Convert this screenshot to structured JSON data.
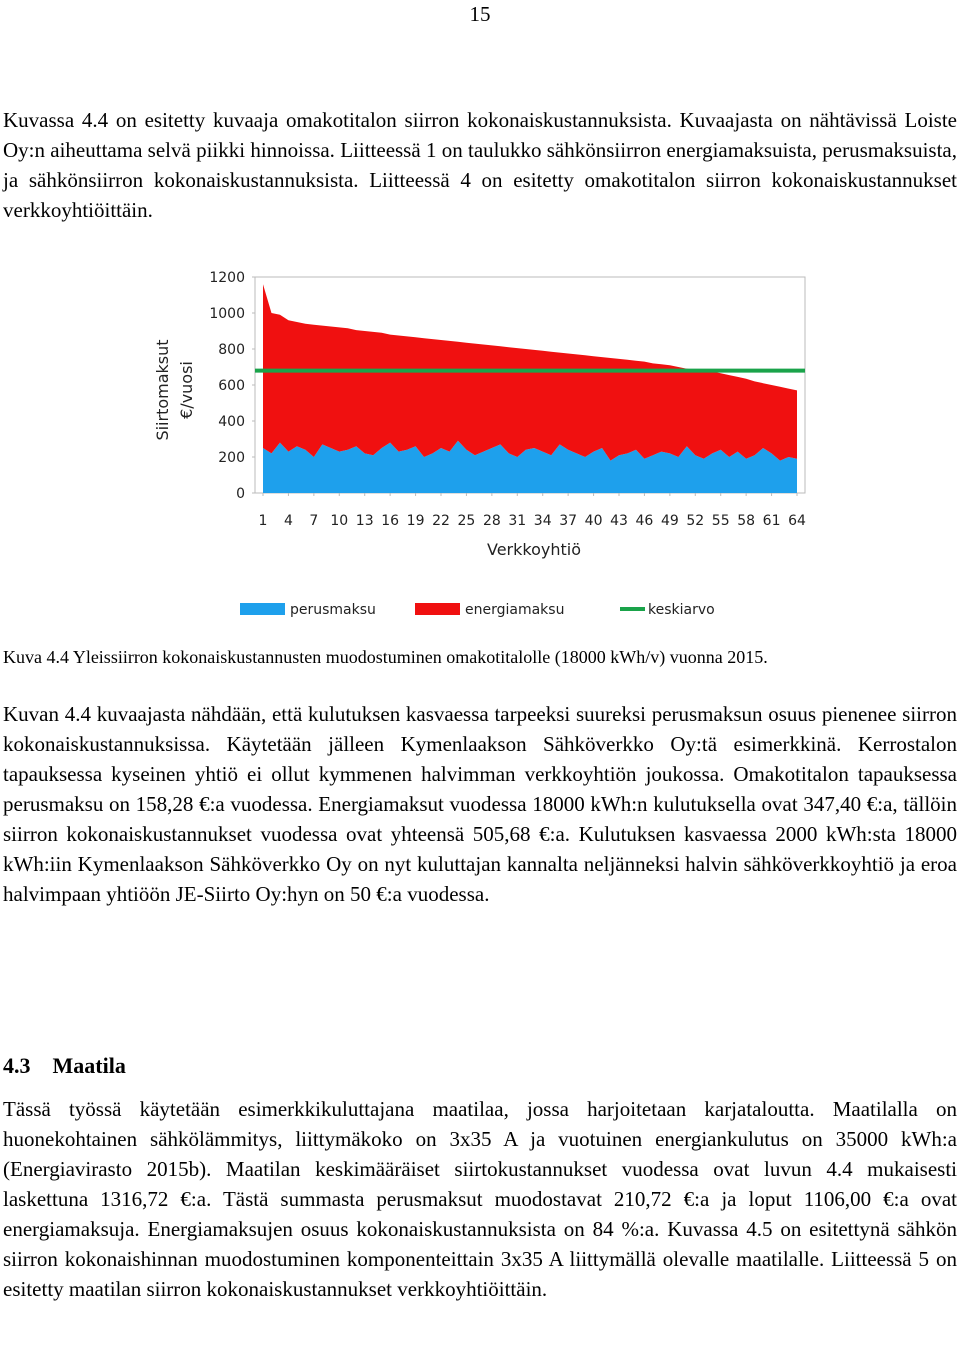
{
  "header": {
    "page_number": "15"
  },
  "paragraphs": [
    "Kuvassa 4.4 on esitetty kuvaaja omakotitalon siirron kokonaiskustannuksista. Kuvaajasta on nähtävissä Loiste Oy:n aiheuttama selvä piikki hinnoissa. Liitteessä 1 on taulukko sähkönsiirron energiamaksuista, perusmaksuista, ja sähkönsiirron kokonaiskustannuksista. Liitteessä 4 on esitetty omakotitalon siirron kokonaiskustannukset verkkoyhtiöittäin.",
    "Kuvan 4.4 kuvaajasta nähdään, että kulutuksen kasvaessa tarpeeksi suureksi perusmaksun osuus pienenee siirron kokonaiskustannuksissa. Käytetään jälleen Kymenlaakson Sähköverkko Oy:tä esimerkkinä. Kerrostalon tapauksessa kyseinen yhtiö ei ollut kymmenen halvimman verkkoyhtiön joukossa. Omakotitalon tapauksessa perusmaksu on 158,28 €:a vuodessa. Energiamaksut vuodessa 18000 kWh:n kulutuksella ovat 347,40 €:a, tällöin siirron kokonaiskustannukset vuodessa ovat yhteensä 505,68 €:a. Kulutuksen kasvaessa 2000 kWh:sta 18000 kWh:iin Kymenlaakson Sähköverkko Oy on nyt kuluttajan kannalta neljänneksi halvin sähköverkkoyhtiö ja eroa halvimpaan yhtiöön JE-Siirto Oy:hyn on 50 €:a vuodessa.",
    "Tässä työssä käytetään esimerkkikuluttajana maatilaa, jossa harjoitetaan karjataloutta. Maatilalla on huonekohtainen sähkölämmitys, liittymäkoko on 3x35 A ja vuotuinen energiankulutus on 35000 kWh:a (Energiavirasto 2015b). Maatilan keskimääräiset siirtokustannukset vuodessa ovat luvun 4.4 mukaisesti laskettuna 1316,72 €:a. Tästä summasta perusmaksut muodostavat 210,72 €:a ja loput 1106,00 €:a ovat energiamaksuja. Energiamaksujen osuus kokonaiskustannuksista on 84 %:a. Kuvassa 4.5 on esitettynä sähkön siirron kokonaishinnan muodostuminen komponenteittain 3x35 A liittymällä olevalle maatilalle. Liitteessä 5 on esitetty maatilan siirron kokonaiskustannukset verkkoyhtiöittäin."
  ],
  "caption": "Kuva 4.4 Yleissiirron kokonaiskustannusten muodostuminen omakotitalolle (18000 kWh/v) vuonna 2015.",
  "section": {
    "number": "4.3",
    "title": "Maatila"
  },
  "chart_data": {
    "type": "stacked_area",
    "x_label": "Verkkoyhtiö",
    "y_label": [
      "Siirtomaksut",
      "€/vuosi"
    ],
    "x": [
      1,
      2,
      3,
      4,
      5,
      6,
      7,
      8,
      9,
      10,
      11,
      12,
      13,
      14,
      15,
      16,
      17,
      18,
      19,
      20,
      21,
      22,
      23,
      24,
      25,
      26,
      27,
      28,
      29,
      30,
      31,
      32,
      33,
      34,
      35,
      36,
      37,
      38,
      39,
      40,
      41,
      42,
      43,
      44,
      45,
      46,
      47,
      48,
      49,
      50,
      51,
      52,
      53,
      54,
      55,
      56,
      57,
      58,
      59,
      60,
      61,
      62,
      63,
      64
    ],
    "xlim": [
      1,
      64
    ],
    "xticks": [
      1,
      4,
      7,
      10,
      13,
      16,
      19,
      22,
      25,
      28,
      31,
      34,
      37,
      40,
      43,
      46,
      49,
      52,
      55,
      58,
      61,
      64
    ],
    "ylim": [
      0,
      1200
    ],
    "yticks": [
      0,
      200,
      400,
      600,
      800,
      1000,
      1200
    ],
    "series": [
      {
        "name": "perusmaksu",
        "color": "#1ea0ec",
        "values": [
          250,
          220,
          280,
          230,
          260,
          240,
          200,
          270,
          250,
          230,
          240,
          260,
          220,
          210,
          250,
          280,
          230,
          240,
          260,
          200,
          220,
          250,
          230,
          290,
          240,
          210,
          230,
          250,
          270,
          220,
          200,
          240,
          250,
          230,
          210,
          270,
          240,
          220,
          200,
          230,
          250,
          180,
          210,
          220,
          240,
          190,
          210,
          230,
          220,
          200,
          260,
          210,
          190,
          220,
          240,
          200,
          230,
          190,
          210,
          250,
          220,
          180,
          200,
          190
        ]
      },
      {
        "name": "energiamaksu",
        "color": "#f01010",
        "values": [
          910,
          780,
          710,
          730,
          690,
          700,
          735,
          660,
          675,
          690,
          675,
          645,
          680,
          685,
          640,
          600,
          645,
          630,
          605,
          660,
          635,
          600,
          615,
          550,
          595,
          620,
          595,
          570,
          545,
          590,
          605,
          560,
          545,
          560,
          575,
          510,
          535,
          550,
          565,
          530,
          505,
          570,
          535,
          520,
          495,
          540,
          510,
          485,
          490,
          500,
          430,
          475,
          490,
          455,
          425,
          455,
          415,
          445,
          410,
          360,
          380,
          410,
          380,
          380
        ]
      }
    ],
    "reference_line": {
      "name": "keskiarvo",
      "color": "#1aa34a",
      "value": 680
    }
  }
}
